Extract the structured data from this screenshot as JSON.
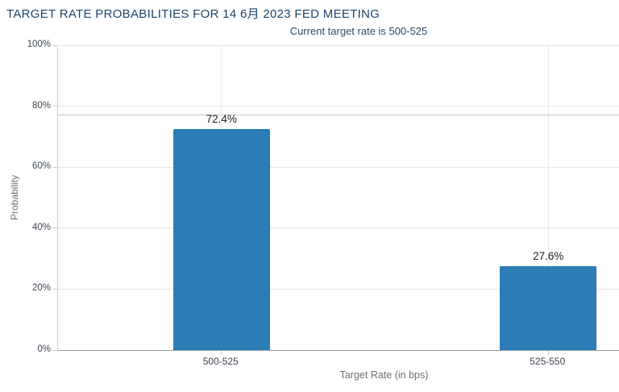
{
  "chart_data": {
    "type": "bar",
    "title": "TARGET RATE PROBABILITIES FOR 14 6月 2023 FED MEETING",
    "subtitle": "Current target rate is 500-525",
    "xlabel": "Target Rate (in bps)",
    "ylabel": "Probability",
    "categories": [
      "500-525",
      "525-550"
    ],
    "values": [
      72.4,
      27.6
    ],
    "data_labels": [
      "72.4%",
      "27.6%"
    ],
    "ylim": [
      0,
      100
    ],
    "yticks": [
      0,
      20,
      40,
      60,
      80,
      100
    ],
    "ytick_labels": [
      "0%",
      "20%",
      "40%",
      "60%",
      "80%",
      "100%"
    ],
    "grid": true,
    "legend": false,
    "reference_line_y": 77,
    "colors": {
      "bar": "#2c7cb5",
      "title": "#1d4468",
      "subtitle": "#2b4d68",
      "tick_label": "#3c4652",
      "axis_title": "#707070",
      "gridline": "#e6e6e6",
      "reference_line": "#c6c6c6",
      "y_axis_line": "#cfcfcf",
      "x_axis_line": "#9b9b9b"
    }
  }
}
